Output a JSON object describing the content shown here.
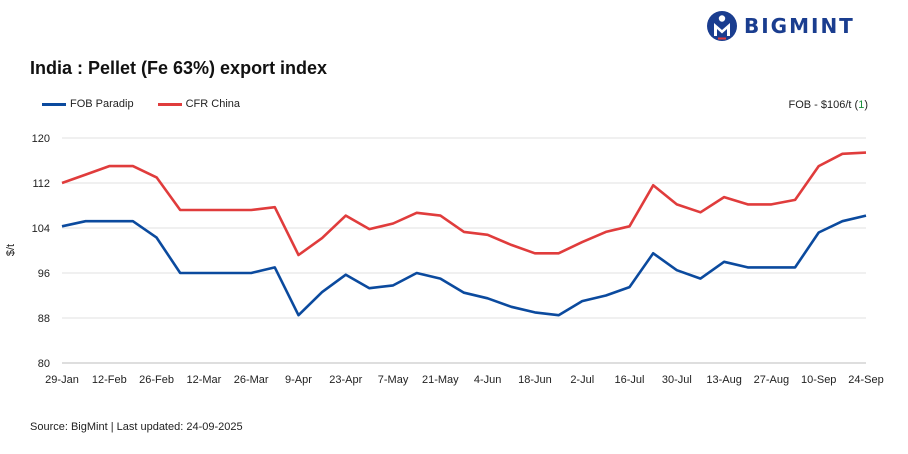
{
  "header": {
    "logo_text": "BIGMINT",
    "logo_icon": "person-m-circle-icon",
    "brand_color": "#1a3d8f"
  },
  "chart_data": {
    "type": "line",
    "title": "India : Pellet (Fe 63%) export index",
    "ylabel": "$/t",
    "xlabel": "",
    "ylim": [
      80,
      120
    ],
    "yticks": [
      80,
      88,
      96,
      104,
      112,
      120
    ],
    "grid": true,
    "legend_position": "top-left",
    "x_tick_labels": [
      "29-Jan",
      "12-Feb",
      "26-Feb",
      "12-Mar",
      "26-Mar",
      "9-Apr",
      "23-Apr",
      "7-May",
      "21-May",
      "4-Jun",
      "18-Jun",
      "2-Jul",
      "16-Jul",
      "30-Jul",
      "13-Aug",
      "27-Aug",
      "10-Sep",
      "24-Sep"
    ],
    "x": [
      "29-Jan",
      "5-Feb",
      "12-Feb",
      "19-Feb",
      "26-Feb",
      "5-Mar",
      "12-Mar",
      "19-Mar",
      "26-Mar",
      "2-Apr",
      "9-Apr",
      "16-Apr",
      "23-Apr",
      "30-Apr",
      "7-May",
      "14-May",
      "21-May",
      "28-May",
      "4-Jun",
      "11-Jun",
      "18-Jun",
      "25-Jun",
      "2-Jul",
      "9-Jul",
      "16-Jul",
      "23-Jul",
      "30-Jul",
      "6-Aug",
      "13-Aug",
      "20-Aug",
      "27-Aug",
      "3-Sep",
      "10-Sep",
      "17-Sep",
      "24-Sep"
    ],
    "series": [
      {
        "name": "FOB Paradip",
        "color": "#0b4a9e",
        "values": [
          104.3,
          105.2,
          105.2,
          105.2,
          102.3,
          96,
          96,
          96,
          96,
          97,
          88.5,
          92.6,
          95.7,
          93.3,
          93.8,
          96,
          95,
          92.5,
          91.5,
          90,
          89,
          88.5,
          91,
          92,
          93.5,
          99.5,
          96.5,
          95,
          98,
          97,
          97,
          97,
          103.2,
          105.2,
          106.2
        ]
      },
      {
        "name": "CFR China",
        "color": "#e03c3c",
        "values": [
          112,
          113.5,
          115,
          115,
          113,
          107.2,
          107.2,
          107.2,
          107.2,
          107.7,
          99.2,
          102.2,
          106.2,
          103.8,
          104.8,
          106.7,
          106.2,
          103.3,
          102.8,
          101,
          99.5,
          99.5,
          101.5,
          103.3,
          104.3,
          111.6,
          108.2,
          106.8,
          109.5,
          108.2,
          108.2,
          109,
          115,
          117.2,
          117.4
        ]
      }
    ],
    "annotation": {
      "text": "FOB - $106/t (",
      "delta": "1",
      "suffix": ")"
    },
    "source": "Source: BigMint | Last updated: 24-09-2025"
  }
}
